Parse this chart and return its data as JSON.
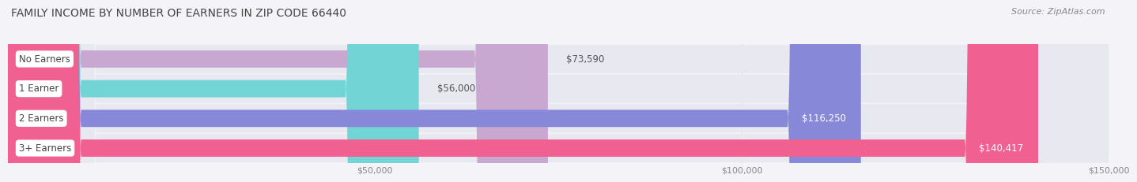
{
  "title": "FAMILY INCOME BY NUMBER OF EARNERS IN ZIP CODE 66440",
  "source": "Source: ZipAtlas.com",
  "categories": [
    "No Earners",
    "1 Earner",
    "2 Earners",
    "3+ Earners"
  ],
  "values": [
    73590,
    56000,
    116250,
    140417
  ],
  "value_labels": [
    "$73,590",
    "$56,000",
    "$116,250",
    "$140,417"
  ],
  "bar_colors": [
    "#c8a8d0",
    "#72d4d4",
    "#8888d8",
    "#f06090"
  ],
  "xlim": [
    0,
    150000
  ],
  "xticks": [
    50000,
    100000,
    150000
  ],
  "xtick_labels": [
    "$50,000",
    "$100,000",
    "$150,000"
  ],
  "background_color": "#f4f4f8",
  "bar_bg_color": "#e8e8ee",
  "row_bg_colors": [
    "#f8f8fc",
    "#f2f2f8"
  ],
  "title_fontsize": 10,
  "source_fontsize": 8,
  "bar_height": 0.58,
  "bar_label_fontsize": 8.5,
  "value_label_fontsize": 8.5,
  "value_inside_threshold": 110000
}
